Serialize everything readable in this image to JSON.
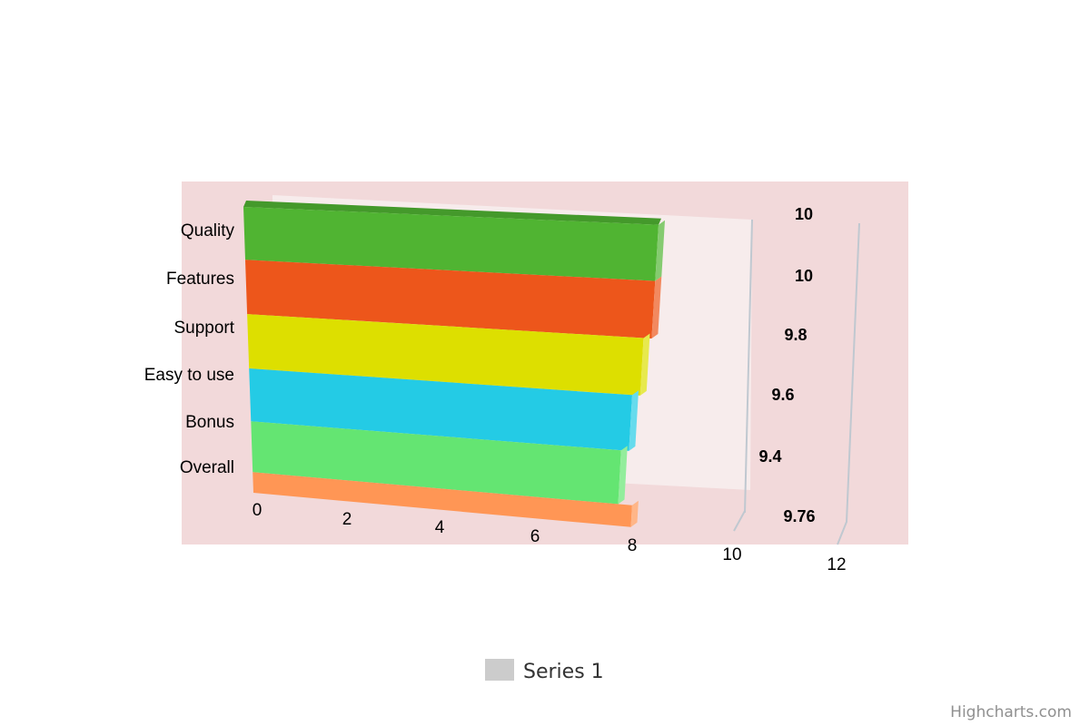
{
  "chart_data": {
    "type": "bar",
    "orientation": "horizontal",
    "three_d": true,
    "categories": [
      "Quality",
      "Features",
      "Support",
      "Easy to use",
      "Bonus",
      "Overall"
    ],
    "series": [
      {
        "name": "Series 1",
        "values": [
          10,
          10,
          9.8,
          9.6,
          9.4,
          9.76
        ]
      }
    ],
    "data_labels": [
      "10",
      "10",
      "9.8",
      "9.6",
      "9.4",
      "9.76"
    ],
    "bar_colors": [
      "#50b432",
      "#ed561b",
      "#dddf00",
      "#24cbe5",
      "#64e572",
      "#ff9655"
    ],
    "xaxis_ticks": [
      "0",
      "2",
      "4",
      "6",
      "8",
      "10",
      "12"
    ],
    "xlim": [
      0,
      12
    ],
    "plot_background": "#f2d9da",
    "legend": {
      "position": "bottom-center",
      "entries": [
        "Series 1"
      ],
      "swatch_color": "#cccccc"
    }
  },
  "credits": "Highcharts.com"
}
